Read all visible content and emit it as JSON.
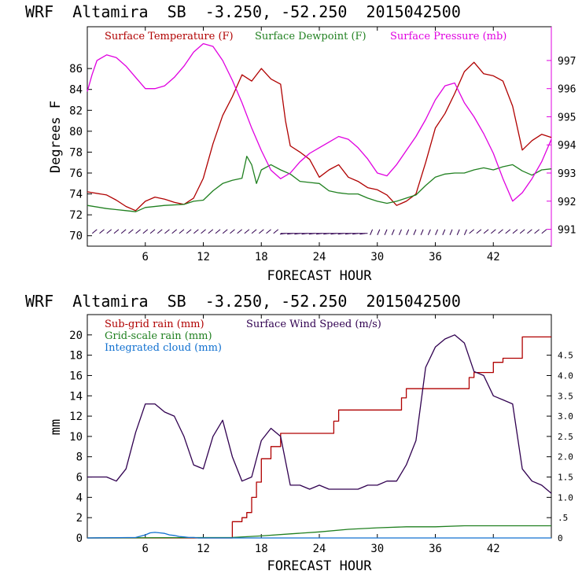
{
  "colors": {
    "temp": "#b00000",
    "dewpoint": "#208020",
    "pressure": "#e000e0",
    "subgrid_rain": "#b00000",
    "gridscale_rain": "#208020",
    "cloud": "#1070d0",
    "wind": "#300050",
    "barbs": "#300050",
    "axis": "#000000"
  },
  "chart_data": [
    {
      "type": "line",
      "title": "WRF  Altamira  SB  -3.250, -52.250  2015042500",
      "xlabel": "FORECAST HOUR",
      "ylabel": "Degrees F",
      "xlim": [
        0,
        48
      ],
      "ylim": [
        69,
        90
      ],
      "y2lim": [
        990.4,
        998.2
      ],
      "x_ticks": [
        6,
        12,
        18,
        24,
        30,
        36,
        42
      ],
      "y_ticks": [
        70,
        72,
        74,
        76,
        78,
        80,
        82,
        84,
        86
      ],
      "y2_ticks": [
        991,
        992,
        993,
        994,
        995,
        996,
        997
      ],
      "legend": [
        "Surface Temperature (F)",
        "Surface Dewpoint (F)",
        "Surface Pressure (mb)"
      ],
      "series": [
        {
          "name": "Surface Temperature (F)",
          "axis": "left",
          "x": [
            0,
            2,
            3,
            4,
            5,
            6,
            7,
            8,
            9,
            10,
            11,
            12,
            13,
            14,
            15,
            16,
            17,
            18,
            19,
            20,
            20.5,
            21,
            22,
            23,
            24,
            25,
            26,
            27,
            28,
            29,
            30,
            31,
            32,
            33,
            34,
            35,
            36,
            37,
            38,
            39,
            40,
            41,
            42,
            43,
            44,
            45,
            46,
            47,
            48
          ],
          "y": [
            74.2,
            73.9,
            73.4,
            72.8,
            72.4,
            73.3,
            73.7,
            73.5,
            73.2,
            73,
            73.6,
            75.5,
            78.8,
            81.5,
            83.3,
            85.4,
            84.8,
            86,
            85,
            84.5,
            81,
            78.6,
            78,
            77.3,
            75.6,
            76.3,
            76.8,
            75.6,
            75.2,
            74.6,
            74.4,
            73.9,
            72.9,
            73.3,
            74,
            77,
            80.3,
            81.7,
            83.6,
            85.7,
            86.6,
            85.5,
            85.3,
            84.8,
            82.4,
            78.2,
            79.1,
            79.7,
            79.4
          ]
        },
        {
          "name": "Surface Dewpoint (F)",
          "axis": "left",
          "x": [
            0,
            2,
            3,
            4,
            5,
            6,
            8,
            10,
            11,
            12,
            13,
            14,
            15,
            16,
            16.5,
            17,
            17.5,
            18,
            19,
            20,
            21,
            22,
            23,
            24,
            25,
            26,
            27,
            28,
            29,
            30,
            31,
            32,
            33,
            34,
            35,
            36,
            37,
            38,
            39,
            40,
            41,
            42,
            43,
            44,
            45,
            46,
            47,
            48
          ],
          "y": [
            72.9,
            72.6,
            72.5,
            72.4,
            72.3,
            72.7,
            72.9,
            73,
            73.3,
            73.4,
            74.3,
            75,
            75.3,
            75.5,
            77.6,
            76.8,
            75,
            76.3,
            76.8,
            76.3,
            75.9,
            75.2,
            75.1,
            75,
            74.3,
            74.1,
            74,
            74,
            73.6,
            73.3,
            73.1,
            73.3,
            73.6,
            73.9,
            74.8,
            75.6,
            75.9,
            76,
            76,
            76.3,
            76.5,
            76.3,
            76.6,
            76.8,
            76.2,
            75.8,
            76.3,
            76.4
          ]
        },
        {
          "name": "Surface Pressure (mb)",
          "axis": "right",
          "x": [
            0,
            0.5,
            1,
            2,
            3,
            4,
            5,
            6,
            7,
            8,
            9,
            10,
            11,
            12,
            13,
            14,
            15,
            16,
            17,
            18,
            19,
            20,
            21,
            22,
            23,
            24,
            25,
            26,
            27,
            28,
            29,
            30,
            31,
            32,
            33,
            34,
            35,
            36,
            37,
            38,
            39,
            40,
            41,
            42,
            43,
            44,
            45,
            46,
            47,
            48
          ],
          "y": [
            995.9,
            996.5,
            997,
            997.2,
            997.1,
            996.8,
            996.4,
            996,
            996,
            996.1,
            996.4,
            996.8,
            997.3,
            997.6,
            997.5,
            997,
            996.3,
            995.5,
            994.6,
            993.8,
            993.1,
            992.8,
            993,
            993.4,
            993.7,
            993.9,
            994.1,
            994.3,
            994.2,
            993.9,
            993.5,
            993,
            992.9,
            993.3,
            993.8,
            994.3,
            994.9,
            995.6,
            996.1,
            996.2,
            995.5,
            995,
            994.4,
            993.7,
            992.8,
            992,
            992.3,
            992.8,
            993.4,
            994.2
          ]
        }
      ]
    },
    {
      "type": "line",
      "title": "WRF  Altamira  SB  -3.250, -52.250  2015042500",
      "xlabel": "FORECAST HOUR",
      "ylabel": "mm",
      "xlim": [
        0,
        48
      ],
      "ylim": [
        0,
        22
      ],
      "y2lim": [
        0,
        5.5
      ],
      "x_ticks": [
        6,
        12,
        18,
        24,
        30,
        36,
        42
      ],
      "y_ticks": [
        0,
        2,
        4,
        6,
        8,
        10,
        12,
        14,
        16,
        18,
        20
      ],
      "y2_tick_labels": [
        "0",
        ".5",
        "1.0",
        "1.5",
        "2.0",
        "2.5",
        "3.0",
        "3.5",
        "4.0",
        "4.5"
      ],
      "y2_tick_values": [
        0,
        0.5,
        1,
        1.5,
        2,
        2.5,
        3,
        3.5,
        4,
        4.5
      ],
      "legend": [
        "Sub-grid rain (mm)",
        "Grid-scale rain (mm)",
        "Integrated cloud (mm)",
        "Surface Wind Speed (m/s)"
      ],
      "series": [
        {
          "name": "Sub-grid rain (mm)",
          "axis": "left",
          "x": [
            0,
            14.5,
            15,
            16,
            16.5,
            17,
            17.5,
            18,
            19,
            20,
            21,
            22,
            23,
            24,
            25,
            25.5,
            26,
            27,
            28,
            29,
            30,
            31,
            32,
            32.5,
            33,
            34,
            35,
            36,
            37,
            38,
            39,
            39.5,
            40,
            41,
            42,
            43,
            44,
            44.5,
            45,
            46,
            47,
            48
          ],
          "y": [
            0,
            0,
            1.6,
            2,
            2.5,
            4,
            5.5,
            7.8,
            9,
            10.3,
            10.3,
            10.3,
            10.3,
            10.3,
            10.3,
            11.5,
            12.6,
            12.6,
            12.6,
            12.6,
            12.6,
            12.6,
            12.6,
            13.8,
            14.7,
            14.7,
            14.7,
            14.7,
            14.7,
            14.7,
            14.7,
            15.8,
            16.3,
            16.3,
            17.3,
            17.7,
            17.7,
            17.7,
            19.8,
            19.8,
            19.8,
            19.8
          ]
        },
        {
          "name": "Grid-scale rain (mm)",
          "axis": "left",
          "x": [
            0,
            15,
            18,
            21,
            24,
            27,
            30,
            33,
            36,
            39,
            42,
            45,
            48
          ],
          "y": [
            0,
            0.05,
            0.2,
            0.4,
            0.6,
            0.85,
            1,
            1.1,
            1.1,
            1.2,
            1.2,
            1.2,
            1.2
          ]
        },
        {
          "name": "Integrated cloud (mm)",
          "axis": "left",
          "x": [
            0,
            5,
            6,
            6.5,
            7,
            7.5,
            8,
            8.5,
            9,
            9.5,
            10,
            10.5,
            11,
            11.5,
            12,
            48
          ],
          "y": [
            0,
            0.05,
            0.3,
            0.5,
            0.55,
            0.5,
            0.45,
            0.3,
            0.25,
            0.15,
            0.1,
            0.05,
            0.05,
            0,
            0,
            0
          ]
        },
        {
          "name": "Surface Wind Speed (m/s)",
          "axis": "right",
          "x": [
            0,
            1,
            2,
            3,
            4,
            5,
            6,
            7,
            8,
            9,
            10,
            11,
            12,
            13,
            14,
            15,
            16,
            17,
            18,
            19,
            20,
            21,
            22,
            23,
            24,
            25,
            26,
            27,
            28,
            29,
            30,
            31,
            32,
            33,
            34,
            35,
            36,
            37,
            38,
            39,
            40,
            41,
            42,
            43,
            44,
            45,
            46,
            47,
            48
          ],
          "y": [
            1.5,
            1.5,
            1.5,
            1.4,
            1.7,
            2.6,
            3.3,
            3.3,
            3.1,
            3,
            2.5,
            1.8,
            1.7,
            2.5,
            2.9,
            2,
            1.4,
            1.5,
            2.4,
            2.7,
            2.5,
            1.3,
            1.3,
            1.2,
            1.3,
            1.2,
            1.2,
            1.2,
            1.2,
            1.3,
            1.3,
            1.4,
            1.4,
            1.8,
            2.4,
            4.2,
            4.7,
            4.9,
            5,
            4.8,
            4.1,
            4,
            3.5,
            3.4,
            3.3,
            1.7,
            1.4,
            1.3,
            1.1
          ]
        }
      ]
    }
  ]
}
